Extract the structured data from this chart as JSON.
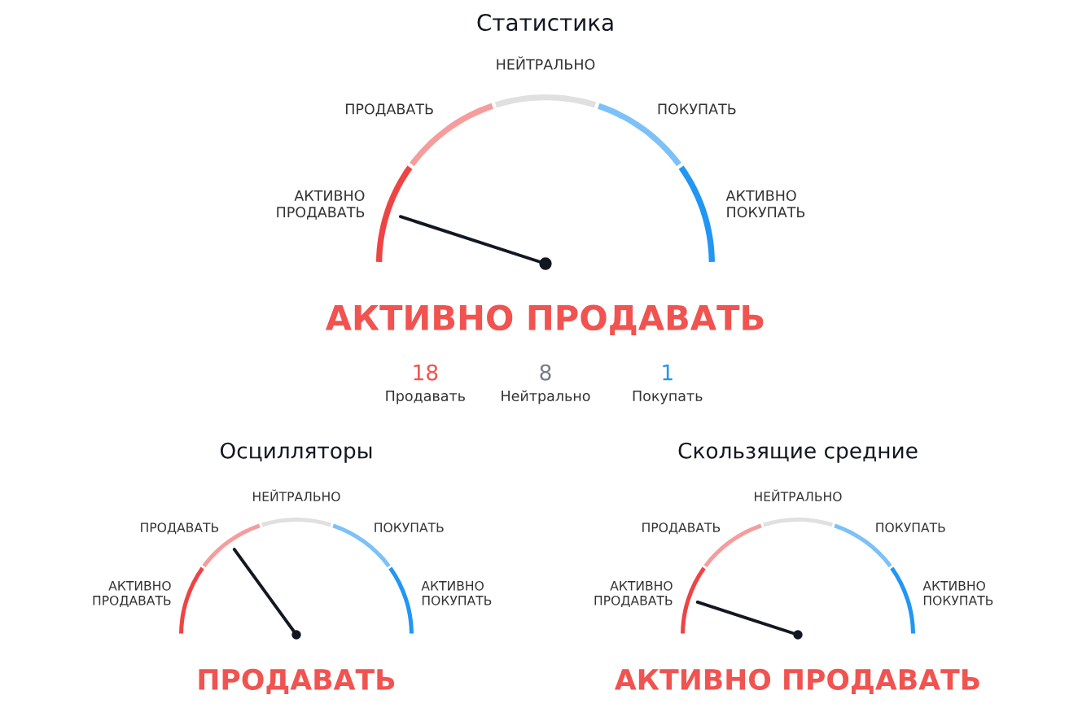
{
  "chart_data": [
    {
      "type": "donut",
      "title": "Статистика",
      "categories": [
        "АКТИВНО\nПРОДАВАТЬ",
        "ПРОДАВАТЬ",
        "НЕЙТРАЛЬНО",
        "ПОКУПАТЬ",
        "АКТИВНО\nПОКУПАТЬ"
      ],
      "values": [
        20,
        20,
        20,
        20,
        20
      ],
      "colors": [
        "#ef4444",
        "#f59d9d",
        "#e0e0e0",
        "#7cc1f7",
        "#2196f3"
      ],
      "needle": "АКТИВНО\nПРОДАВАТЬ",
      "annotations": [
        "АКТИВНО ПРОДАВАТЬ",
        "18",
        "Продавать",
        "8",
        "Нейтрально",
        "1",
        "Покупать"
      ]
    },
    {
      "type": "donut",
      "title": "Осцилляторы",
      "categories": [
        "АКТИВНО\nПРОДАВАТЬ",
        "ПРОДАВАТЬ",
        "НЕЙТРАЛЬНО",
        "ПОКУПАТЬ",
        "АКТИВНО\nПОКУПАТЬ"
      ],
      "values": [
        20,
        20,
        20,
        20,
        20
      ],
      "colors": [
        "#ef4444",
        "#f59d9d",
        "#e0e0e0",
        "#7cc1f7",
        "#2196f3"
      ],
      "needle": "ПРОДАВАТЬ",
      "annotations": [
        "ПРОДАВАТЬ"
      ]
    },
    {
      "type": "donut",
      "title": "Скользящие средние",
      "categories": [
        "АКТИВНО\nПРОДАВАТЬ",
        "ПРОДАВАТЬ",
        "НЕЙТРАЛЬНО",
        "ПОКУПАТЬ",
        "АКТИВНО\nПОКУПАТЬ"
      ],
      "values": [
        20,
        20,
        20,
        20,
        20
      ],
      "colors": [
        "#ef4444",
        "#f59d9d",
        "#e0e0e0",
        "#7cc1f7",
        "#2196f3"
      ],
      "needle": "АКТИВНО\nПРОДАВАТЬ",
      "annotations": [
        "АКТИВНО ПРОДАВАТЬ"
      ]
    }
  ]
}
